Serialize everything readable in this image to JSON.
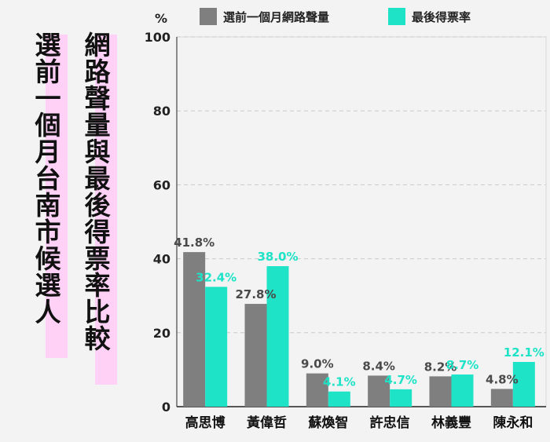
{
  "titles": {
    "right": "網路聲量與最後得票率比較",
    "left": "選前一個月台南市候選人"
  },
  "colors": {
    "volume": "#7f7f7f",
    "vote": "#1ee3c7",
    "highlight": "#ffd1f6"
  },
  "chart_data": {
    "type": "bar",
    "unit_label": "%",
    "categories": [
      "高思博",
      "黃偉哲",
      "蘇煥智",
      "許忠信",
      "林義豐",
      "陳永和"
    ],
    "series": [
      {
        "name": "選前一個月網路聲量",
        "values": [
          41.8,
          27.8,
          9.0,
          8.4,
          8.2,
          4.8
        ],
        "labels": [
          "41.8%",
          "27.8%",
          "9.0%",
          "8.4%",
          "8.2%",
          "4.8%"
        ]
      },
      {
        "name": "最後得票率",
        "values": [
          32.4,
          38.0,
          4.1,
          4.7,
          8.7,
          12.1
        ],
        "labels": [
          "32.4%",
          "38.0%",
          "4.1%",
          "4.7%",
          "8.7%",
          "12.1%"
        ]
      }
    ],
    "yticks": [
      "0",
      "20",
      "40",
      "60",
      "80",
      "100"
    ],
    "ylim": [
      0,
      100
    ],
    "grid": true,
    "legend_position": "top"
  }
}
